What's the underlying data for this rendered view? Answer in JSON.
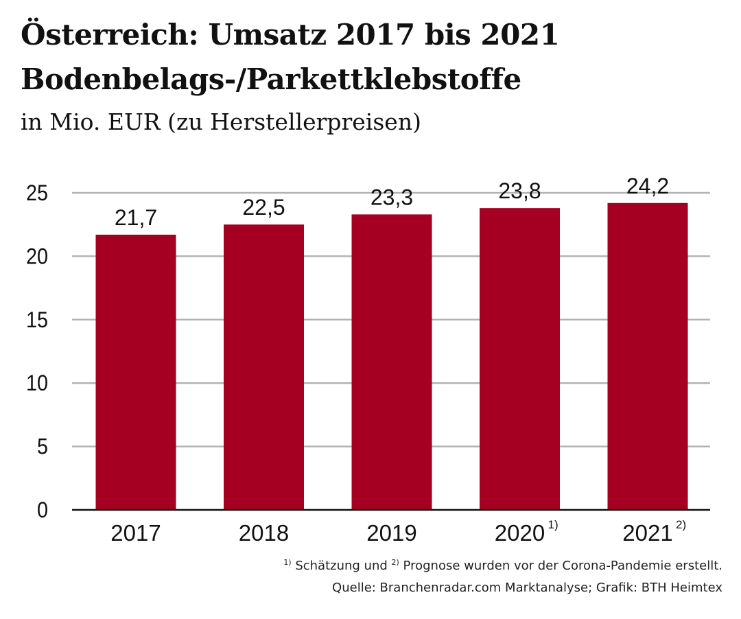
{
  "title_line1": "Österreich: Umsatz 2017 bis 2021",
  "title_line2": "Bodenbelags-/Parkettklebstoffe",
  "subtitle": "in Mio. EUR (zu Herstellerpreisen)",
  "footnote": {
    "mark1": "1)",
    "text1": " Schätzung und ",
    "mark2": "2)",
    "text2": " Prognose wurden vor der Corona-Pandemie erstellt."
  },
  "source": "Quelle: Branchenradar.com Marktanalyse; Grafik: BTH Heimtex",
  "chart_data": {
    "type": "bar",
    "categories": [
      "2017",
      "2018",
      "2019",
      "2020",
      "2021"
    ],
    "category_marks": [
      "",
      "",
      "",
      "1)",
      "2)"
    ],
    "values": [
      21.7,
      22.5,
      23.3,
      23.8,
      24.2
    ],
    "value_labels": [
      "21,7",
      "22,5",
      "23,3",
      "23,8",
      "24,2"
    ],
    "ylim": [
      0,
      25
    ],
    "yticks": [
      0,
      5,
      10,
      15,
      20,
      25
    ],
    "grid": true,
    "bar_color": "#a50021",
    "grid_color": "#b3b3b3"
  }
}
